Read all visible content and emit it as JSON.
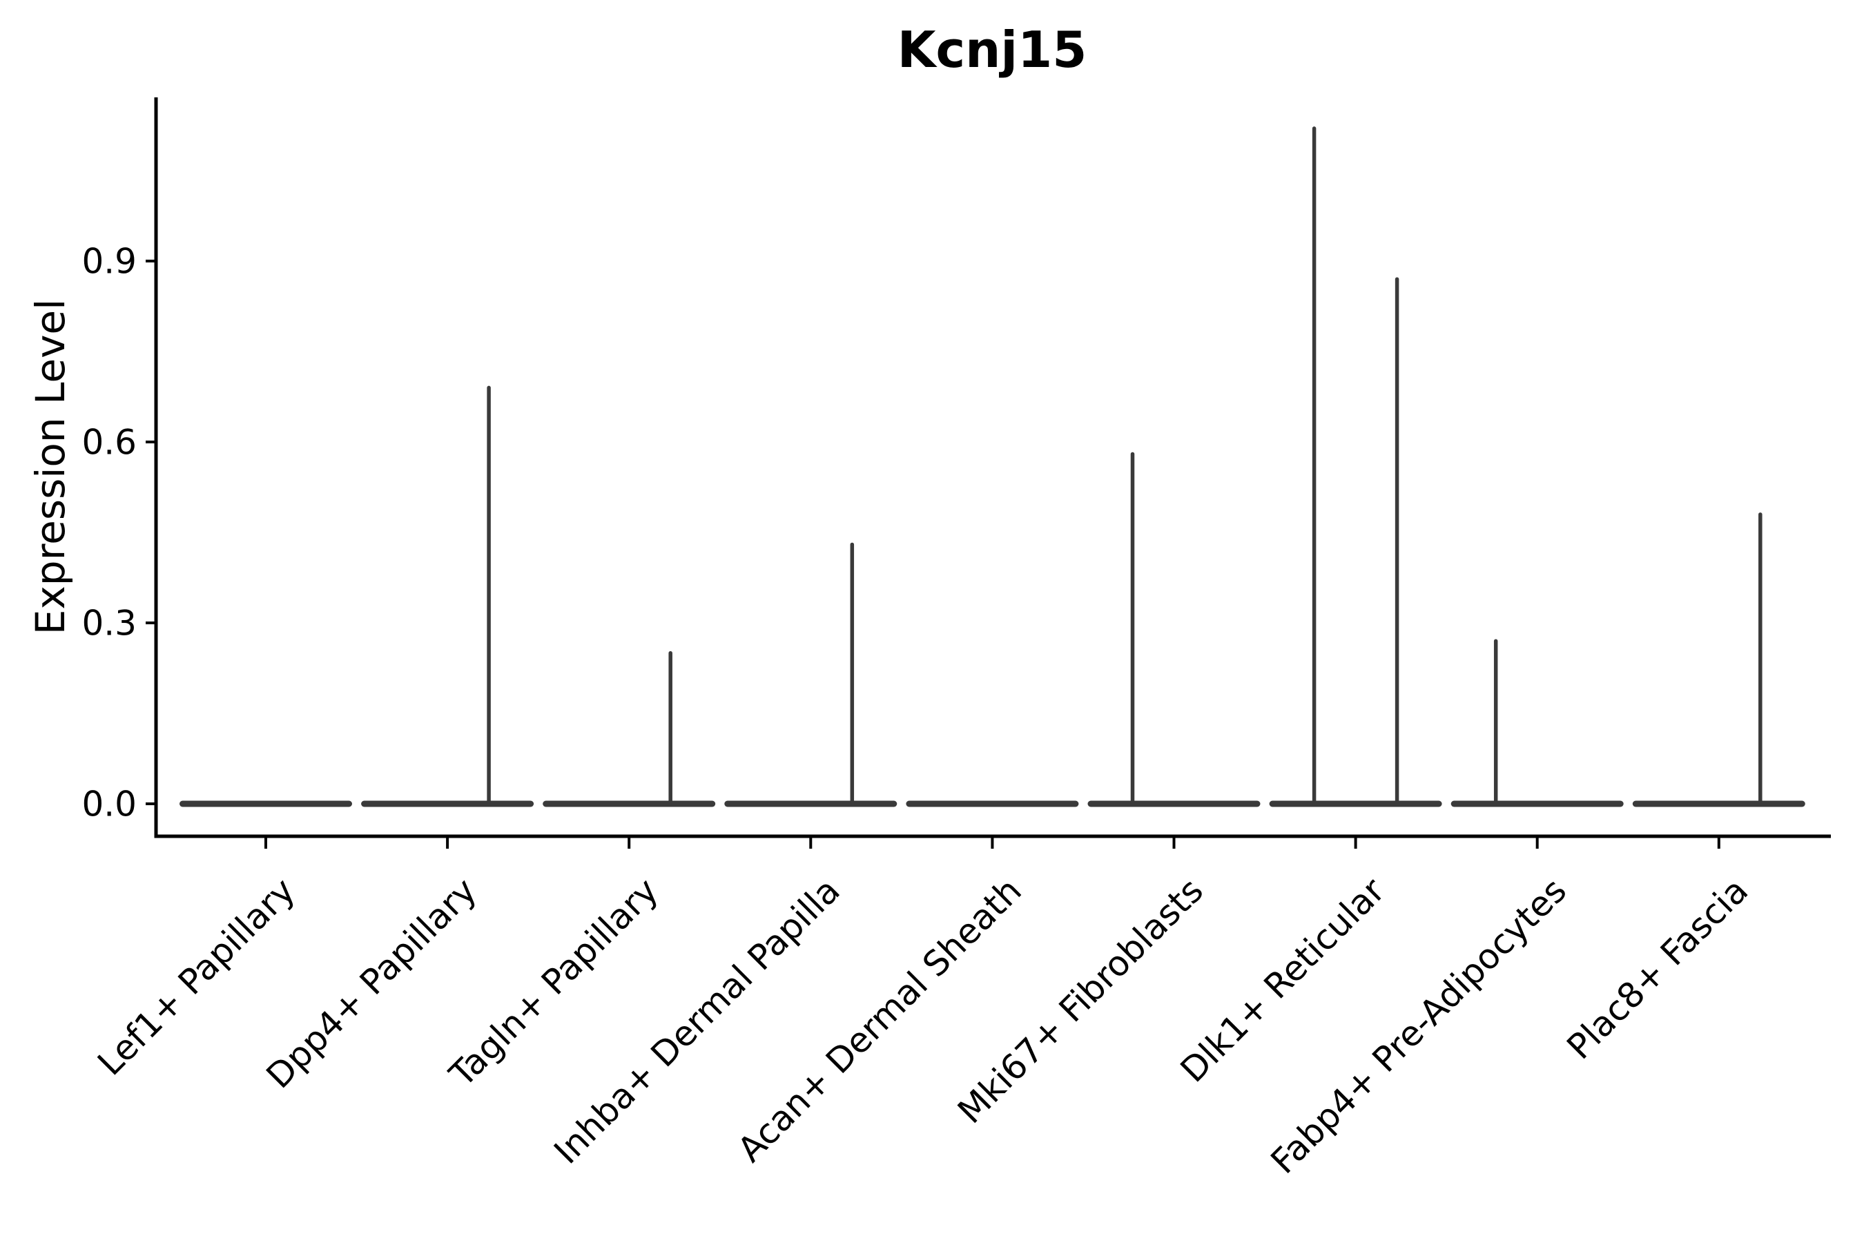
{
  "chart_data": {
    "type": "violin",
    "title": "Kcnj15",
    "ylabel": "Expression Level",
    "xlabel": "",
    "ytick_labels": [
      "0.0",
      "0.3",
      "0.6",
      "0.9"
    ],
    "ytick_values": [
      0.0,
      0.3,
      0.6,
      0.9
    ],
    "ylim": [
      -0.05,
      1.17
    ],
    "grid": false,
    "legend": "none",
    "x_tick_rotation_deg": 45,
    "categories": [
      "Lef1+ Papillary",
      "Dpp4+ Papillary",
      "Tagln+ Papillary",
      "Inhba+ Dermal Papilla",
      "Acan+ Dermal Sheath",
      "Mki67+ Fibroblasts",
      "Dlk1+ Reticular",
      "Fabp4+ Pre-Adipocytes",
      "Plac8+ Fascia"
    ],
    "baseline_expression": 0.0,
    "violins": [
      {
        "category": "Lef1+ Papillary",
        "baseline_value": 0.0,
        "spikes": []
      },
      {
        "category": "Dpp4+ Papillary",
        "baseline_value": 0.0,
        "spikes": [
          {
            "side": "right",
            "value": 0.69
          }
        ]
      },
      {
        "category": "Tagln+ Papillary",
        "baseline_value": 0.0,
        "spikes": [
          {
            "side": "right",
            "value": 0.25
          }
        ]
      },
      {
        "category": "Inhba+ Dermal Papilla",
        "baseline_value": 0.0,
        "spikes": [
          {
            "side": "right",
            "value": 0.43
          }
        ]
      },
      {
        "category": "Acan+ Dermal Sheath",
        "baseline_value": 0.0,
        "spikes": []
      },
      {
        "category": "Mki67+ Fibroblasts",
        "baseline_value": 0.0,
        "spikes": [
          {
            "side": "left",
            "value": 0.58
          }
        ]
      },
      {
        "category": "Dlk1+ Reticular",
        "baseline_value": 0.0,
        "spikes": [
          {
            "side": "left",
            "value": 1.12
          },
          {
            "side": "right",
            "value": 0.87
          }
        ]
      },
      {
        "category": "Fabp4+ Pre-Adipocytes",
        "baseline_value": 0.0,
        "spikes": [
          {
            "side": "left",
            "value": 0.27
          }
        ]
      },
      {
        "category": "Plac8+ Fascia",
        "baseline_value": 0.0,
        "spikes": [
          {
            "side": "right",
            "value": 0.48
          }
        ]
      }
    ],
    "colors": {
      "background": "#ffffff",
      "axis": "#000000",
      "text": "#000000",
      "violin_stroke": "#3a3a3a"
    }
  }
}
